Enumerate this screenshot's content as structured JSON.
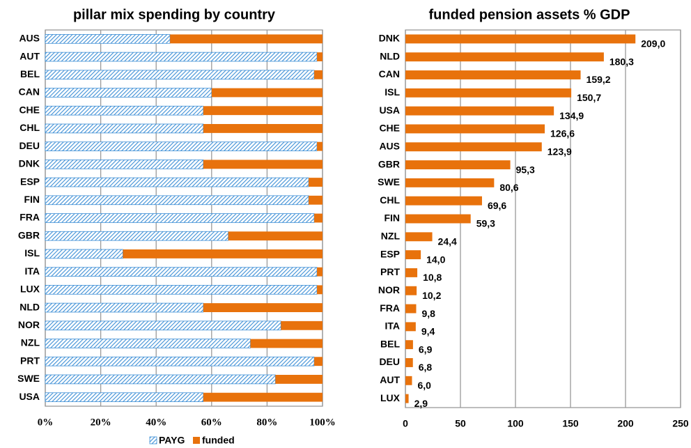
{
  "chart_data": [
    {
      "type": "bar",
      "stacked": true,
      "title": "pillar mix spending by country",
      "categories": [
        "AUS",
        "AUT",
        "BEL",
        "CAN",
        "CHE",
        "CHL",
        "DEU",
        "DNK",
        "ESP",
        "FIN",
        "FRA",
        "GBR",
        "ISL",
        "ITA",
        "LUX",
        "NLD",
        "NOR",
        "NZL",
        "PRT",
        "SWE",
        "USA"
      ],
      "series": [
        {
          "name": "PAYG",
          "color": "#3d8fd6",
          "pattern": "hatch",
          "values": [
            45,
            98,
            97,
            60,
            57,
            57,
            98,
            57,
            95,
            95,
            97,
            66,
            28,
            98,
            98,
            57,
            85,
            74,
            97,
            83,
            57
          ]
        },
        {
          "name": "funded",
          "color": "#e8720c",
          "values": [
            55,
            2,
            3,
            40,
            43,
            43,
            2,
            43,
            5,
            5,
            3,
            34,
            72,
            2,
            2,
            43,
            15,
            26,
            3,
            17,
            43
          ]
        }
      ],
      "xlim": [
        0,
        100
      ],
      "xticks": [
        {
          "value": 0,
          "label": "0%"
        },
        {
          "value": 20,
          "label": "20%"
        },
        {
          "value": 40,
          "label": "40%"
        },
        {
          "value": 60,
          "label": "60%"
        },
        {
          "value": 80,
          "label": "80%"
        },
        {
          "value": 100,
          "label": "100%"
        }
      ],
      "grid": true,
      "legend": "bottom"
    },
    {
      "type": "bar",
      "title": "funded pension assets % GDP",
      "categories": [
        "DNK",
        "NLD",
        "CAN",
        "ISL",
        "USA",
        "CHE",
        "AUS",
        "GBR",
        "SWE",
        "CHL",
        "FIN",
        "NZL",
        "ESP",
        "PRT",
        "NOR",
        "FRA",
        "ITA",
        "BEL",
        "DEU",
        "AUT",
        "LUX"
      ],
      "values": [
        209.0,
        180.3,
        159.2,
        150.7,
        134.9,
        126.6,
        123.9,
        95.3,
        80.6,
        69.6,
        59.3,
        24.4,
        14.0,
        10.8,
        10.2,
        9.8,
        9.4,
        6.9,
        6.8,
        6.0,
        2.9
      ],
      "value_labels": [
        "209,0",
        "180,3",
        "159,2",
        "150,7",
        "134,9",
        "126,6",
        "123,9",
        "95,3",
        "80,6",
        "69,6",
        "59,3",
        "24,4",
        "14,0",
        "10,8",
        "10,2",
        "9,8",
        "9,4",
        "6,9",
        "6,8",
        "6,0",
        "2,9"
      ],
      "color": "#e8720c",
      "xlim": [
        0,
        250
      ],
      "xticks": [
        0,
        50,
        100,
        150,
        200,
        250
      ],
      "grid": true
    }
  ]
}
